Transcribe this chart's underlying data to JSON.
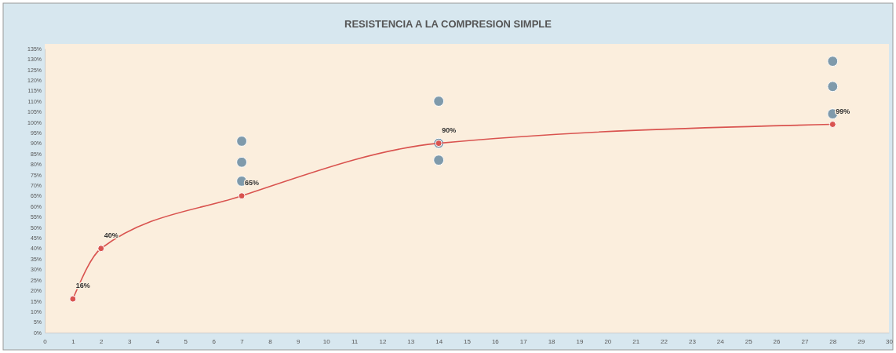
{
  "chart_data": {
    "type": "scatter",
    "title": "RESISTENCIA A LA COMPRESION SIMPLE",
    "xlim": [
      0,
      30
    ],
    "xticks": [
      0,
      1,
      2,
      3,
      4,
      5,
      6,
      7,
      8,
      9,
      10,
      11,
      12,
      13,
      14,
      15,
      16,
      17,
      18,
      19,
      20,
      21,
      22,
      23,
      24,
      25,
      26,
      27,
      28,
      29,
      30
    ],
    "ylim": [
      0,
      135
    ],
    "yticks": [
      {
        "value": 0,
        "label": "0%"
      },
      {
        "value": 5,
        "label": "5%"
      },
      {
        "value": 10,
        "label": "10%"
      },
      {
        "value": 15,
        "label": "15%"
      },
      {
        "value": 20,
        "label": "20%"
      },
      {
        "value": 25,
        "label": "25%"
      },
      {
        "value": 30,
        "label": "30%"
      },
      {
        "value": 35,
        "label": "35%"
      },
      {
        "value": 40,
        "label": "40%"
      },
      {
        "value": 45,
        "label": "45%"
      },
      {
        "value": 50,
        "label": "50%"
      },
      {
        "value": 55,
        "label": "55%"
      },
      {
        "value": 60,
        "label": "60%"
      },
      {
        "value": 65,
        "label": "65%"
      },
      {
        "value": 70,
        "label": "70%"
      },
      {
        "value": 75,
        "label": "75%"
      },
      {
        "value": 80,
        "label": "80%"
      },
      {
        "value": 85,
        "label": "85%"
      },
      {
        "value": 90,
        "label": "90%"
      },
      {
        "value": 95,
        "label": "95%"
      },
      {
        "value": 100,
        "label": "100%"
      },
      {
        "value": 105,
        "label": "105%"
      },
      {
        "value": 110,
        "label": "110%"
      },
      {
        "value": 115,
        "label": "115%"
      },
      {
        "value": 120,
        "label": "120%"
      },
      {
        "value": 125,
        "label": "125%"
      },
      {
        "value": 130,
        "label": "130%"
      },
      {
        "value": 135,
        "label": "135%"
      }
    ],
    "marker": "circle",
    "grid": false,
    "series": [
      {
        "color": "#7f9aab",
        "x": [
          7,
          7,
          7,
          14,
          14,
          14,
          28,
          28,
          28
        ],
        "values": [
          91,
          81,
          72,
          110,
          82,
          90,
          129,
          117,
          104
        ]
      },
      {
        "type": "line",
        "color": "#d9534f",
        "x": [
          1,
          2,
          7,
          14,
          28
        ],
        "values": [
          16,
          40,
          65,
          90,
          99
        ],
        "value_labels": [
          "16%",
          "40%",
          "65%",
          "90%",
          "99%"
        ]
      }
    ]
  }
}
